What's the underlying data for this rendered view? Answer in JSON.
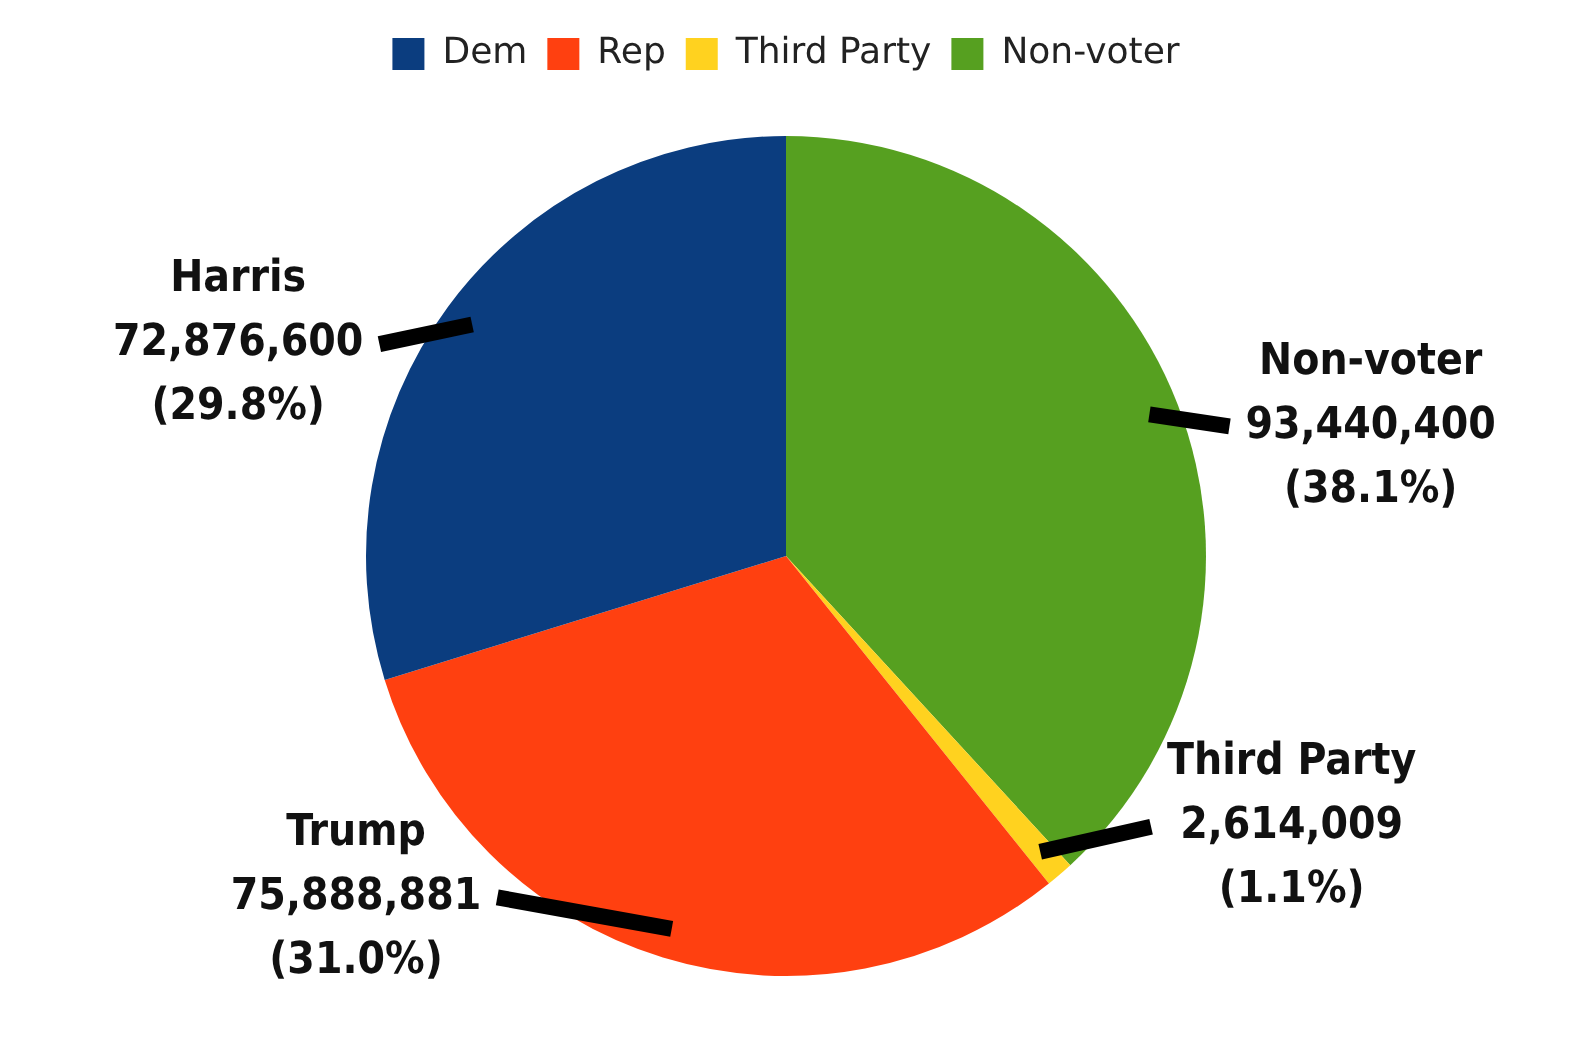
{
  "chart_data": {
    "type": "pie",
    "categories": [
      "Dem",
      "Rep",
      "Third Party",
      "Non-voter"
    ],
    "values": [
      72876600,
      75888881,
      2614009,
      93440400
    ],
    "colors": [
      "#0b3d7f",
      "#ff4010",
      "#ffd21f",
      "#56a020"
    ],
    "value_labels": [
      "Harris\n72,876,600\n(29.8%)",
      "Trump\n75,888,881\n(31.0%)",
      "Third Party\n2,614,009\n(1.1%)",
      "Non-voter\n93,440,400\n(38.1%)"
    ],
    "legend": "top"
  }
}
